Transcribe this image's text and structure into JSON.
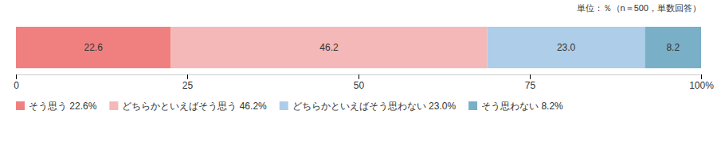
{
  "chart_data": {
    "type": "bar",
    "orientation": "horizontal",
    "stacked": true,
    "data_labels": true,
    "categories": [
      null
    ],
    "series": [
      {
        "name": "そう思う 22.6%",
        "color": "#f08080",
        "values": [
          22.6
        ],
        "value_labels": [
          "22.6"
        ]
      },
      {
        "name": "どちらかといえばそう思う 46.2%",
        "color": "#f4b8b8",
        "values": [
          46.2
        ],
        "value_labels": [
          "46.2"
        ]
      },
      {
        "name": "どちらかといえばそう思わない 23.0%",
        "color": "#aecde8",
        "values": [
          23.0
        ],
        "value_labels": [
          "23.0"
        ]
      },
      {
        "name": "そう思わない 8.2%",
        "color": "#7aafc8",
        "values": [
          8.2
        ],
        "value_labels": [
          "8.2"
        ]
      }
    ],
    "annotations": [
      "単位：％（n＝500，単数回答）"
    ],
    "xlim": [
      0,
      100
    ],
    "xticks": [
      0,
      25,
      50,
      75,
      {
        "value": 100,
        "label": "100%"
      }
    ],
    "grid": false,
    "legend": "bottom",
    "tick_labels": "x"
  }
}
